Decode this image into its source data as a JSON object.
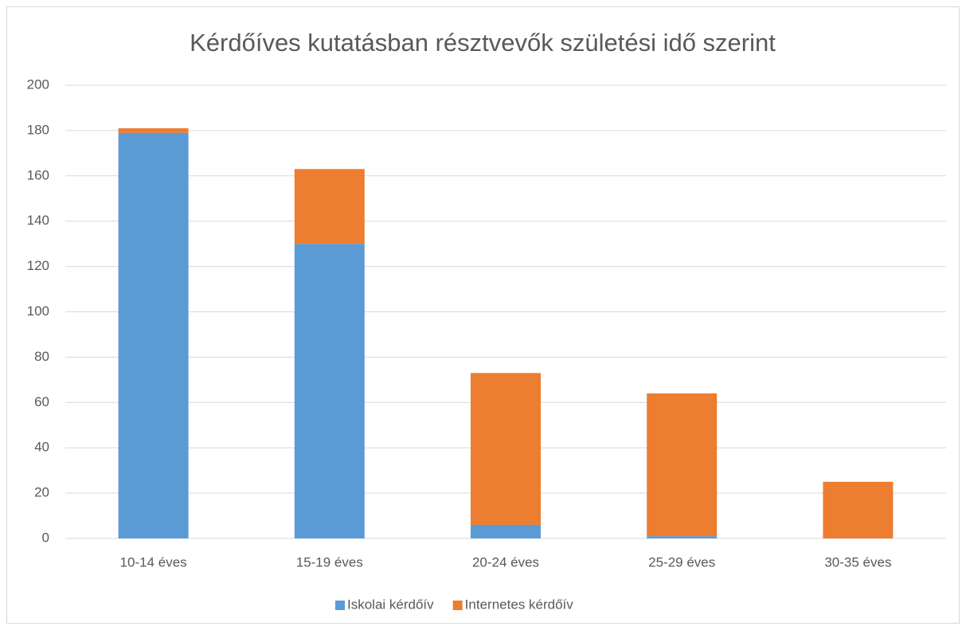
{
  "chart_data": {
    "type": "stacked_bar",
    "title": "Kérdőíves kutatásban résztvevők születési idő szerint",
    "categories": [
      "10-14 éves",
      "15-19 éves",
      "20-24 éves",
      "25-29 éves",
      "30-35 éves"
    ],
    "series": [
      {
        "name": "Iskolai kérdőív",
        "color": "#5b9bd5",
        "values": [
          179,
          130,
          6,
          1,
          0
        ]
      },
      {
        "name": "Internetes kérdőív",
        "color": "#ed7d31",
        "values": [
          2,
          33,
          67,
          63,
          25
        ]
      }
    ],
    "ylim": [
      0,
      200
    ],
    "yticks": [
      0,
      20,
      40,
      60,
      80,
      100,
      120,
      140,
      160,
      180,
      200
    ],
    "grid": true,
    "legend": "bottom"
  }
}
